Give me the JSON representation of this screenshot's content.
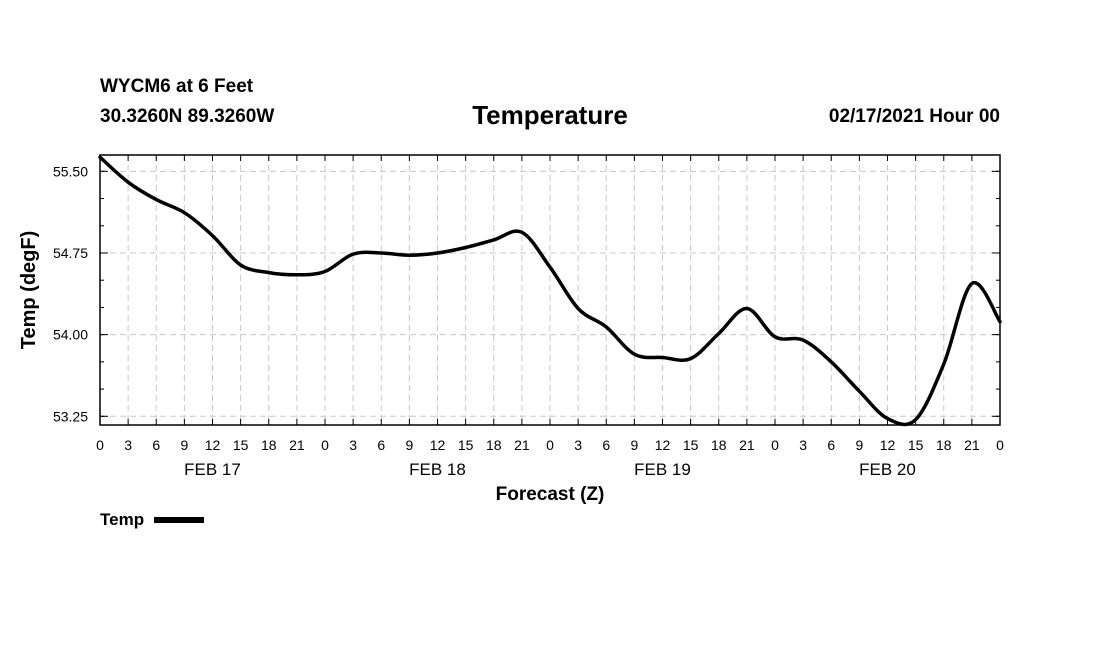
{
  "header": {
    "station": "WYCM6 at 6 Feet",
    "coords": "30.3260N 89.3260W",
    "title": "Temperature",
    "datetime": "02/17/2021 Hour 00"
  },
  "chart_data": {
    "type": "line",
    "title": "Temperature",
    "xlabel": "Forecast (Z)",
    "ylabel": "Temp (degF)",
    "ylim": [
      53.17,
      55.65
    ],
    "xlim": [
      0,
      96
    ],
    "grid": true,
    "legend": "bottom-left",
    "y_ticks": [
      "53.25",
      "54.00",
      "54.75",
      "55.50"
    ],
    "x_ticks": [
      "0",
      "3",
      "6",
      "9",
      "12",
      "15",
      "18",
      "21",
      "0",
      "3",
      "6",
      "9",
      "12",
      "15",
      "18",
      "21",
      "0",
      "3",
      "6",
      "9",
      "12",
      "15",
      "18",
      "21",
      "0",
      "3",
      "6",
      "9",
      "12",
      "15",
      "18",
      "21",
      "0"
    ],
    "day_labels": [
      {
        "label": "FEB 17",
        "hour": 12
      },
      {
        "label": "FEB 18",
        "hour": 36
      },
      {
        "label": "FEB 19",
        "hour": 60
      },
      {
        "label": "FEB 20",
        "hour": 84
      }
    ],
    "series": [
      {
        "name": "Temp",
        "color": "#000000",
        "x": [
          0,
          3,
          6,
          9,
          12,
          15,
          18,
          21,
          24,
          27,
          30,
          33,
          36,
          39,
          42,
          45,
          48,
          51,
          54,
          57,
          60,
          63,
          66,
          69,
          72,
          75,
          78,
          81,
          84,
          87,
          90,
          93,
          96
        ],
        "y": [
          55.63,
          55.4,
          55.24,
          55.12,
          54.91,
          54.64,
          54.57,
          54.55,
          54.58,
          54.74,
          54.75,
          54.73,
          54.75,
          54.8,
          54.87,
          54.94,
          54.62,
          54.24,
          54.07,
          53.82,
          53.79,
          53.78,
          54.01,
          54.24,
          53.98,
          53.95,
          53.75,
          53.48,
          53.23,
          53.22,
          53.73,
          54.47,
          54.12
        ]
      }
    ]
  },
  "legend": {
    "label": "Temp"
  }
}
